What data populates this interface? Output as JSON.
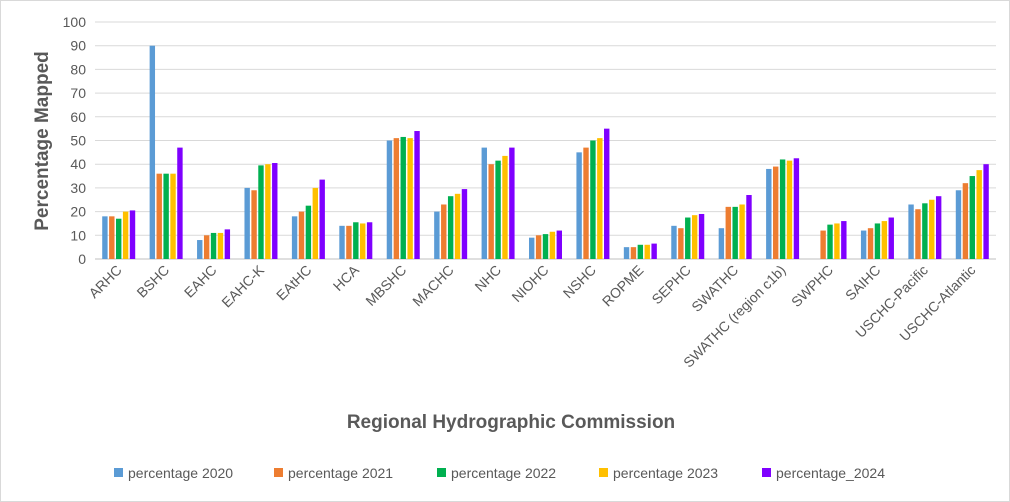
{
  "chart_data": {
    "type": "bar",
    "title": "",
    "xlabel": "Regional Hydrographic Commission",
    "ylabel": "Percentage Mapped",
    "ylim": [
      0,
      100
    ],
    "yticks": [
      0,
      10,
      20,
      30,
      40,
      50,
      60,
      70,
      80,
      90,
      100
    ],
    "grid": true,
    "legend_position": "bottom",
    "categories": [
      "ARHC",
      "BSHC",
      "EAHC",
      "EAHC-K",
      "EAtHC",
      "HCA",
      "MBSHC",
      "MACHC",
      "NHC",
      "NIOHC",
      "NSHC",
      "ROPME",
      "SEPHC",
      "SWATHC",
      "SWATHC (region c1b)",
      "SWPHC",
      "SAIHC",
      "USCHC-Pacific",
      "USCHC-Atlantic"
    ],
    "series": [
      {
        "name": "percentage 2020",
        "color": "#5B9BD5",
        "values": [
          18,
          90,
          8,
          30,
          18,
          14,
          50,
          20,
          47,
          9,
          45,
          5,
          14,
          13,
          38,
          null,
          12,
          23,
          29
        ]
      },
      {
        "name": "percentage 2021",
        "color": "#ED7D31",
        "values": [
          18,
          36,
          10,
          29,
          20,
          14,
          51,
          23,
          40,
          10,
          47,
          5,
          13,
          22,
          39,
          12,
          13,
          21,
          32
        ]
      },
      {
        "name": "percentage 2022",
        "color": "#00B050",
        "values": [
          17,
          36,
          11,
          39.5,
          22.5,
          15.5,
          51.5,
          26.5,
          41.5,
          10.5,
          50,
          6,
          17.5,
          22,
          42,
          14.5,
          15,
          23.5,
          35
        ]
      },
      {
        "name": "percentage 2023",
        "color": "#FFC000",
        "values": [
          20,
          36,
          11,
          40,
          30,
          15,
          51,
          27.5,
          43.5,
          11.5,
          51,
          6,
          18.5,
          23,
          41.5,
          15,
          16,
          25,
          37.5
        ]
      },
      {
        "name": "percentage_2024",
        "color": "#7F00FF",
        "values": [
          20.5,
          47,
          12.5,
          40.5,
          33.5,
          15.5,
          54,
          29.5,
          47,
          12,
          55,
          6.5,
          19,
          27,
          42.5,
          16,
          17.5,
          26.5,
          40
        ]
      }
    ]
  }
}
